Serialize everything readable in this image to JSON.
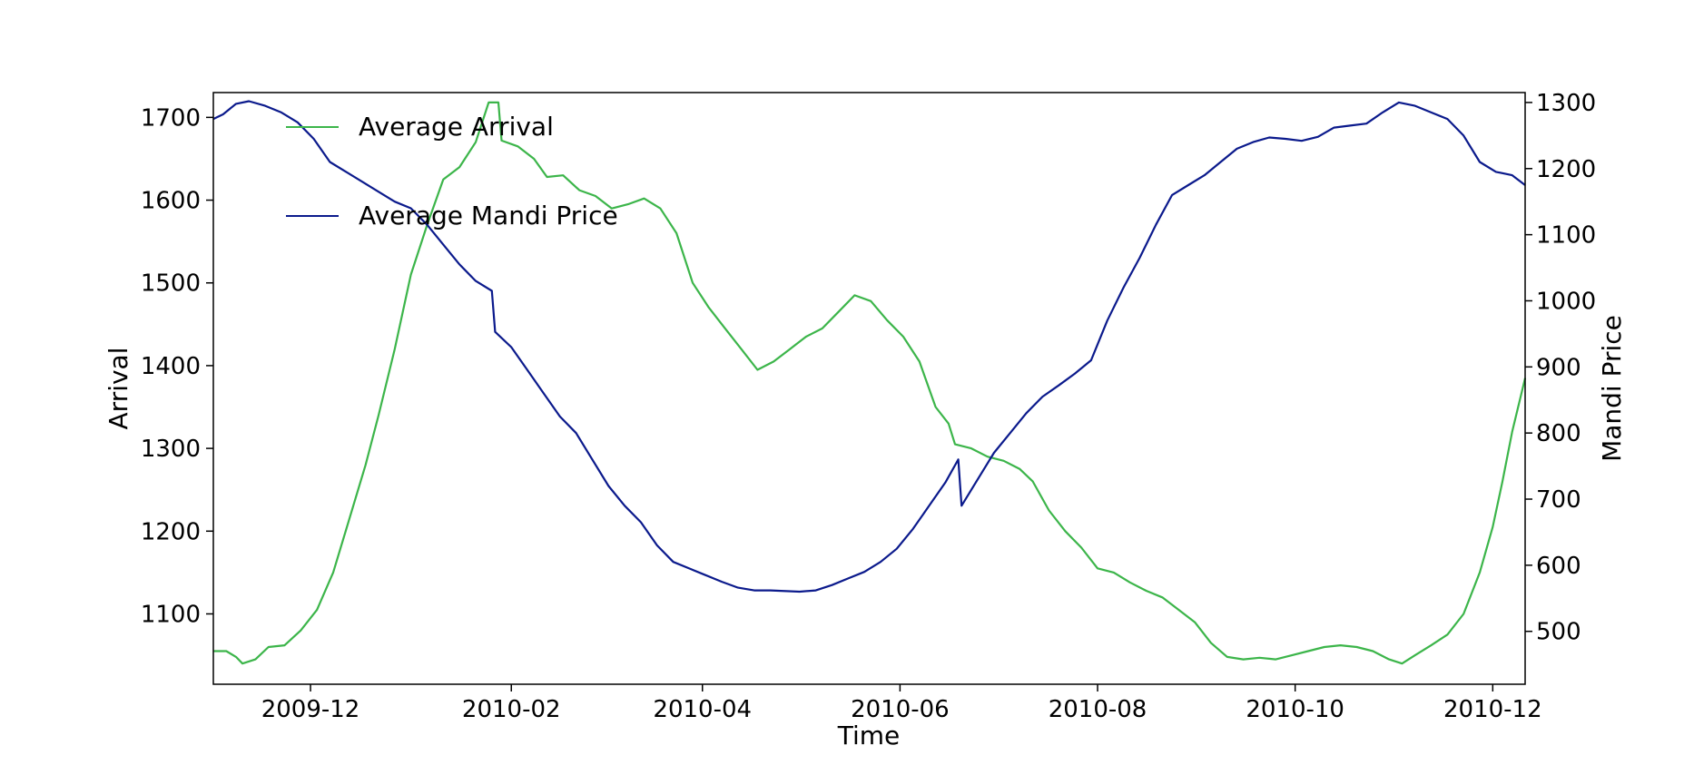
{
  "chart_data": {
    "type": "line",
    "title": "",
    "xlabel": "Time",
    "ylabel_left": "Arrival",
    "ylabel_right": "Mandi Price",
    "grid": false,
    "legend_position": "top-left",
    "x_ticks": [
      "2009-12",
      "2010-02",
      "2010-04",
      "2010-06",
      "2010-08",
      "2010-10",
      "2010-12"
    ],
    "y_left_ticks": [
      1100,
      1200,
      1300,
      1400,
      1500,
      1600,
      1700
    ],
    "y_right_ticks": [
      500,
      600,
      700,
      800,
      900,
      1000,
      1100,
      1200,
      1300
    ],
    "xlim": [
      "2009-11-01",
      "2010-12-11"
    ],
    "ylim_left": [
      1015,
      1730
    ],
    "ylim_right": [
      420,
      1315
    ],
    "series": [
      {
        "name": "Average Arrival",
        "axis": "left",
        "color": "#3cb54a",
        "points": [
          [
            "2009-11-01",
            1055
          ],
          [
            "2009-11-05",
            1055
          ],
          [
            "2009-11-08",
            1048
          ],
          [
            "2009-11-10",
            1040
          ],
          [
            "2009-11-14",
            1045
          ],
          [
            "2009-11-18",
            1060
          ],
          [
            "2009-11-23",
            1062
          ],
          [
            "2009-11-28",
            1080
          ],
          [
            "2009-12-03",
            1105
          ],
          [
            "2009-12-08",
            1150
          ],
          [
            "2009-12-13",
            1215
          ],
          [
            "2009-12-18",
            1280
          ],
          [
            "2009-12-22",
            1340
          ],
          [
            "2009-12-27",
            1420
          ],
          [
            "2010-01-01",
            1510
          ],
          [
            "2010-01-06",
            1570
          ],
          [
            "2010-01-11",
            1625
          ],
          [
            "2010-01-16",
            1640
          ],
          [
            "2010-01-21",
            1670
          ],
          [
            "2010-01-25",
            1718
          ],
          [
            "2010-01-28",
            1718
          ],
          [
            "2010-01-29",
            1672
          ],
          [
            "2010-02-03",
            1665
          ],
          [
            "2010-02-08",
            1650
          ],
          [
            "2010-02-12",
            1628
          ],
          [
            "2010-02-17",
            1630
          ],
          [
            "2010-02-22",
            1612
          ],
          [
            "2010-02-27",
            1605
          ],
          [
            "2010-03-04",
            1590
          ],
          [
            "2010-03-09",
            1595
          ],
          [
            "2010-03-14",
            1602
          ],
          [
            "2010-03-19",
            1590
          ],
          [
            "2010-03-24",
            1560
          ],
          [
            "2010-03-29",
            1500
          ],
          [
            "2010-04-03",
            1470
          ],
          [
            "2010-04-08",
            1445
          ],
          [
            "2010-04-13",
            1420
          ],
          [
            "2010-04-18",
            1395
          ],
          [
            "2010-04-23",
            1405
          ],
          [
            "2010-04-28",
            1420
          ],
          [
            "2010-05-03",
            1435
          ],
          [
            "2010-05-08",
            1445
          ],
          [
            "2010-05-13",
            1465
          ],
          [
            "2010-05-18",
            1485
          ],
          [
            "2010-05-23",
            1478
          ],
          [
            "2010-05-28",
            1455
          ],
          [
            "2010-06-02",
            1435
          ],
          [
            "2010-06-07",
            1405
          ],
          [
            "2010-06-12",
            1350
          ],
          [
            "2010-06-16",
            1330
          ],
          [
            "2010-06-18",
            1305
          ],
          [
            "2010-06-23",
            1300
          ],
          [
            "2010-06-28",
            1290
          ],
          [
            "2010-07-03",
            1285
          ],
          [
            "2010-07-08",
            1275
          ],
          [
            "2010-07-12",
            1260
          ],
          [
            "2010-07-17",
            1225
          ],
          [
            "2010-07-22",
            1200
          ],
          [
            "2010-07-27",
            1180
          ],
          [
            "2010-08-01",
            1155
          ],
          [
            "2010-08-06",
            1150
          ],
          [
            "2010-08-11",
            1138
          ],
          [
            "2010-08-16",
            1128
          ],
          [
            "2010-08-21",
            1120
          ],
          [
            "2010-08-26",
            1105
          ],
          [
            "2010-08-31",
            1090
          ],
          [
            "2010-09-05",
            1065
          ],
          [
            "2010-09-10",
            1048
          ],
          [
            "2010-09-15",
            1045
          ],
          [
            "2010-09-20",
            1047
          ],
          [
            "2010-09-25",
            1045
          ],
          [
            "2010-09-30",
            1050
          ],
          [
            "2010-10-05",
            1055
          ],
          [
            "2010-10-10",
            1060
          ],
          [
            "2010-10-15",
            1062
          ],
          [
            "2010-10-20",
            1060
          ],
          [
            "2010-10-25",
            1055
          ],
          [
            "2010-10-30",
            1045
          ],
          [
            "2010-11-03",
            1040
          ],
          [
            "2010-11-07",
            1050
          ],
          [
            "2010-11-12",
            1062
          ],
          [
            "2010-11-17",
            1075
          ],
          [
            "2010-11-22",
            1100
          ],
          [
            "2010-11-27",
            1150
          ],
          [
            "2010-12-01",
            1205
          ],
          [
            "2010-12-04",
            1260
          ],
          [
            "2010-12-07",
            1320
          ],
          [
            "2010-12-11",
            1385
          ]
        ]
      },
      {
        "name": "Average Mandi Price",
        "axis": "right",
        "color": "#0b1a8c",
        "points": [
          [
            "2009-11-01",
            1275
          ],
          [
            "2009-11-04",
            1282
          ],
          [
            "2009-11-08",
            1298
          ],
          [
            "2009-11-12",
            1302
          ],
          [
            "2009-11-17",
            1295
          ],
          [
            "2009-11-22",
            1285
          ],
          [
            "2009-11-27",
            1270
          ],
          [
            "2009-12-02",
            1245
          ],
          [
            "2009-12-07",
            1210
          ],
          [
            "2009-12-12",
            1195
          ],
          [
            "2009-12-17",
            1180
          ],
          [
            "2009-12-22",
            1165
          ],
          [
            "2009-12-27",
            1150
          ],
          [
            "2010-01-01",
            1140
          ],
          [
            "2010-01-06",
            1115
          ],
          [
            "2010-01-11",
            1085
          ],
          [
            "2010-01-16",
            1055
          ],
          [
            "2010-01-21",
            1030
          ],
          [
            "2010-01-26",
            1015
          ],
          [
            "2010-01-27",
            953
          ],
          [
            "2010-02-01",
            930
          ],
          [
            "2010-02-06",
            895
          ],
          [
            "2010-02-11",
            860
          ],
          [
            "2010-02-16",
            825
          ],
          [
            "2010-02-21",
            800
          ],
          [
            "2010-02-26",
            760
          ],
          [
            "2010-03-03",
            720
          ],
          [
            "2010-03-08",
            690
          ],
          [
            "2010-03-13",
            665
          ],
          [
            "2010-03-18",
            630
          ],
          [
            "2010-03-23",
            605
          ],
          [
            "2010-03-28",
            595
          ],
          [
            "2010-04-02",
            585
          ],
          [
            "2010-04-07",
            575
          ],
          [
            "2010-04-12",
            566
          ],
          [
            "2010-04-17",
            562
          ],
          [
            "2010-04-22",
            562
          ],
          [
            "2010-05-01",
            560
          ],
          [
            "2010-05-06",
            562
          ],
          [
            "2010-05-11",
            570
          ],
          [
            "2010-05-16",
            580
          ],
          [
            "2010-05-21",
            590
          ],
          [
            "2010-05-26",
            605
          ],
          [
            "2010-05-31",
            625
          ],
          [
            "2010-06-05",
            655
          ],
          [
            "2010-06-10",
            690
          ],
          [
            "2010-06-15",
            725
          ],
          [
            "2010-06-19",
            760
          ],
          [
            "2010-06-20",
            690
          ],
          [
            "2010-06-25",
            730
          ],
          [
            "2010-06-30",
            770
          ],
          [
            "2010-07-05",
            800
          ],
          [
            "2010-07-10",
            830
          ],
          [
            "2010-07-15",
            855
          ],
          [
            "2010-07-20",
            872
          ],
          [
            "2010-07-25",
            890
          ],
          [
            "2010-07-30",
            910
          ],
          [
            "2010-08-04",
            970
          ],
          [
            "2010-08-09",
            1020
          ],
          [
            "2010-08-14",
            1065
          ],
          [
            "2010-08-19",
            1115
          ],
          [
            "2010-08-24",
            1160
          ],
          [
            "2010-08-29",
            1175
          ],
          [
            "2010-09-03",
            1190
          ],
          [
            "2010-09-08",
            1210
          ],
          [
            "2010-09-13",
            1230
          ],
          [
            "2010-09-18",
            1240
          ],
          [
            "2010-09-23",
            1247
          ],
          [
            "2010-09-28",
            1245
          ],
          [
            "2010-10-03",
            1242
          ],
          [
            "2010-10-08",
            1248
          ],
          [
            "2010-10-13",
            1262
          ],
          [
            "2010-10-18",
            1265
          ],
          [
            "2010-10-23",
            1268
          ],
          [
            "2010-10-28",
            1285
          ],
          [
            "2010-11-02",
            1300
          ],
          [
            "2010-11-07",
            1295
          ],
          [
            "2010-11-12",
            1285
          ],
          [
            "2010-11-17",
            1275
          ],
          [
            "2010-11-22",
            1250
          ],
          [
            "2010-11-27",
            1210
          ],
          [
            "2010-12-02",
            1195
          ],
          [
            "2010-12-07",
            1190
          ],
          [
            "2010-12-11",
            1175
          ]
        ]
      }
    ]
  }
}
